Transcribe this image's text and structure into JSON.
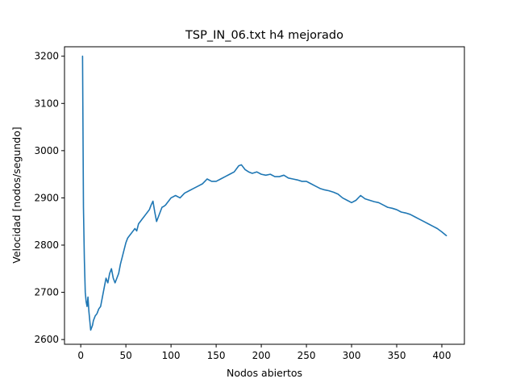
{
  "chart_data": {
    "type": "line",
    "title": "TSP_IN_06.txt h4 mejorado",
    "xlabel": "Nodos abiertos",
    "ylabel": "Velocidad [nodos/segundo]",
    "xlim": [
      -18,
      425
    ],
    "ylim": [
      2590,
      3220
    ],
    "xticks": [
      0,
      50,
      100,
      150,
      200,
      250,
      300,
      350,
      400
    ],
    "yticks": [
      2600,
      2700,
      2800,
      2900,
      3000,
      3100,
      3200
    ],
    "grid": false,
    "series": [
      {
        "color": "#1f77b4",
        "x": [
          2,
          3,
          4,
          5,
          6,
          7,
          8,
          9,
          10,
          11,
          12,
          13,
          14,
          15,
          16,
          18,
          20,
          22,
          24,
          26,
          28,
          30,
          32,
          34,
          36,
          38,
          40,
          42,
          44,
          46,
          48,
          50,
          52,
          54,
          56,
          58,
          60,
          62,
          64,
          66,
          68,
          70,
          72,
          74,
          76,
          78,
          80,
          82,
          84,
          86,
          88,
          90,
          92,
          94,
          96,
          98,
          100,
          105,
          110,
          115,
          120,
          125,
          130,
          135,
          140,
          145,
          150,
          155,
          160,
          165,
          170,
          175,
          178,
          182,
          186,
          190,
          195,
          200,
          205,
          210,
          215,
          220,
          225,
          230,
          235,
          240,
          245,
          250,
          255,
          260,
          265,
          270,
          275,
          280,
          285,
          290,
          295,
          300,
          305,
          310,
          315,
          320,
          325,
          330,
          335,
          340,
          345,
          350,
          355,
          360,
          365,
          370,
          375,
          380,
          385,
          390,
          395,
          400,
          405
        ],
        "y": [
          3200,
          2880,
          2770,
          2700,
          2680,
          2670,
          2690,
          2660,
          2640,
          2620,
          2625,
          2630,
          2640,
          2645,
          2650,
          2655,
          2665,
          2670,
          2690,
          2710,
          2730,
          2720,
          2740,
          2750,
          2730,
          2720,
          2730,
          2740,
          2760,
          2775,
          2790,
          2805,
          2815,
          2820,
          2825,
          2830,
          2835,
          2830,
          2845,
          2850,
          2855,
          2860,
          2865,
          2870,
          2875,
          2885,
          2893,
          2870,
          2850,
          2860,
          2870,
          2880,
          2882,
          2885,
          2890,
          2895,
          2900,
          2905,
          2900,
          2910,
          2915,
          2920,
          2925,
          2930,
          2940,
          2935,
          2935,
          2940,
          2945,
          2950,
          2955,
          2968,
          2970,
          2960,
          2955,
          2952,
          2955,
          2950,
          2948,
          2950,
          2945,
          2945,
          2948,
          2942,
          2940,
          2938,
          2935,
          2935,
          2930,
          2925,
          2920,
          2917,
          2915,
          2912,
          2908,
          2900,
          2895,
          2890,
          2895,
          2905,
          2898,
          2895,
          2892,
          2890,
          2885,
          2880,
          2878,
          2875,
          2870,
          2868,
          2865,
          2860,
          2855,
          2850,
          2845,
          2840,
          2835,
          2828,
          2820
        ]
      }
    ]
  }
}
